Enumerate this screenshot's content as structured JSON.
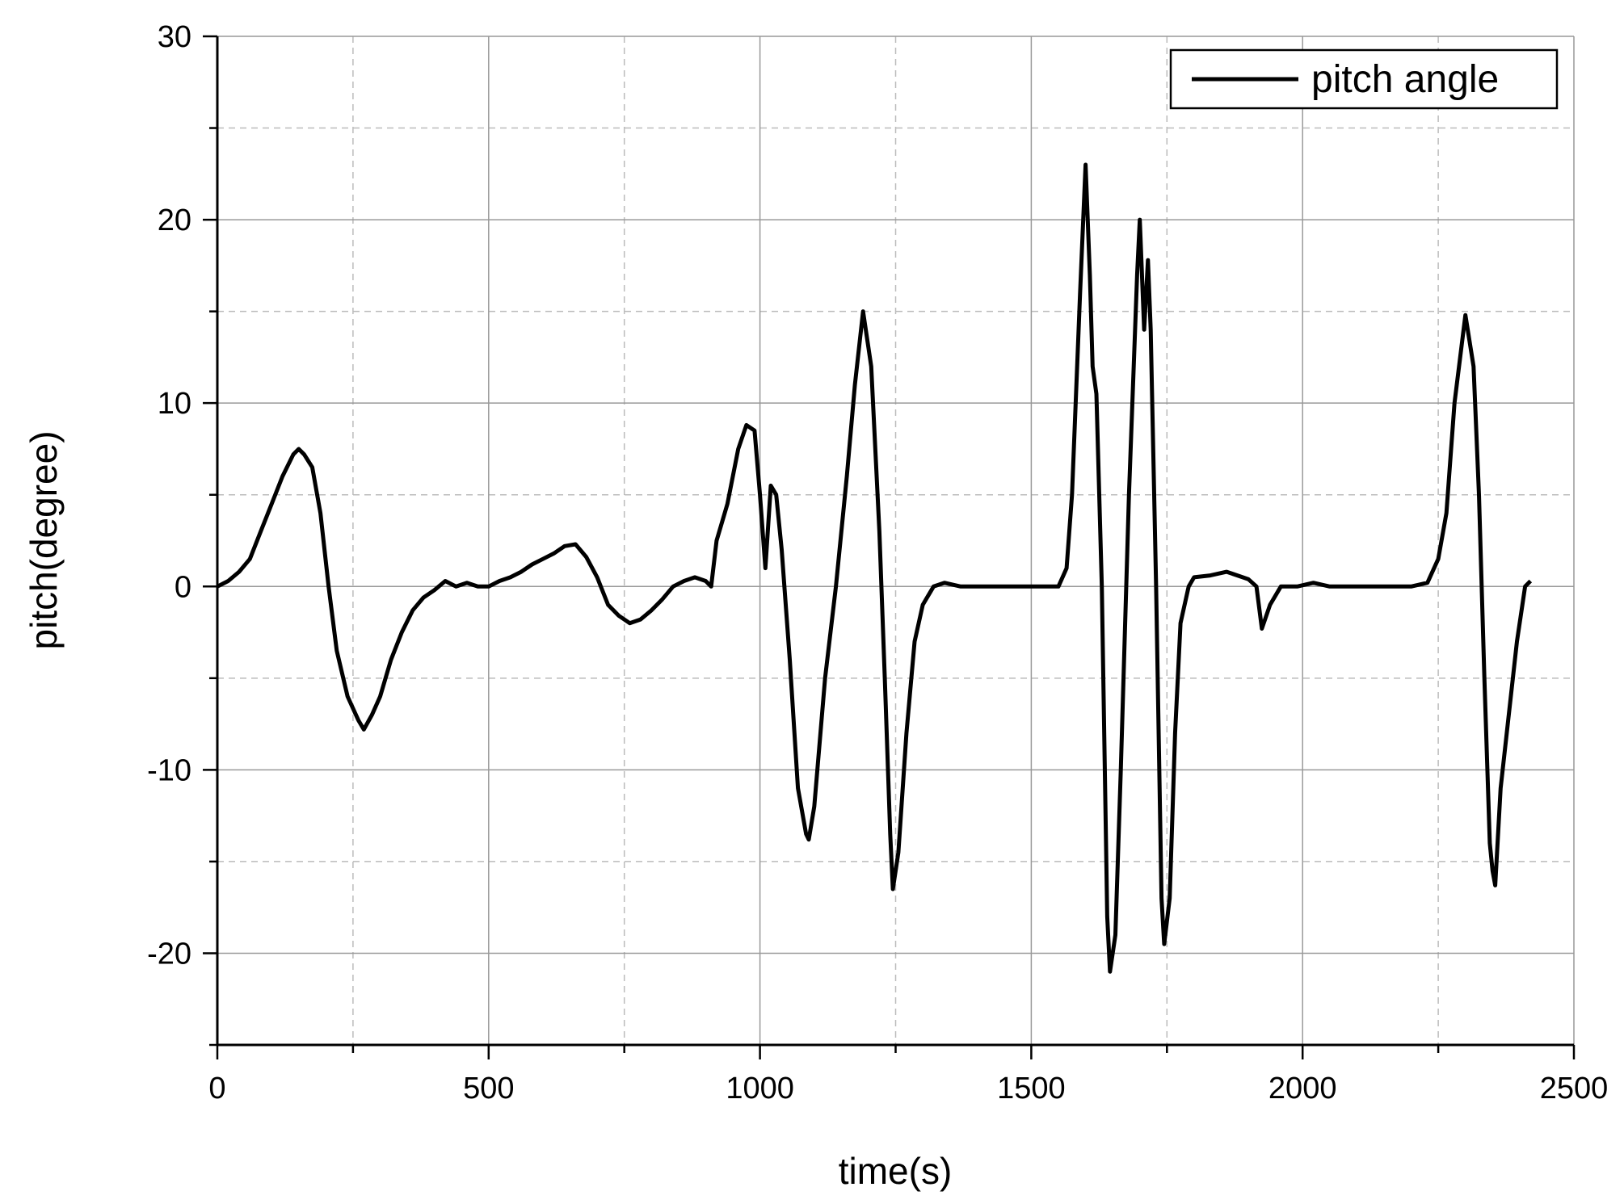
{
  "chart_data": {
    "type": "line",
    "x_label": "time(s)",
    "y_label": "pitch(degree)",
    "xlim": [
      0,
      2500
    ],
    "xticks": [
      0,
      500,
      1000,
      1500,
      2000,
      2500
    ],
    "xminorticks": [
      250,
      750,
      1250,
      1750,
      2250
    ],
    "ylim": [
      -25,
      30
    ],
    "yticks": [
      -20,
      -10,
      0,
      10,
      20,
      30
    ],
    "yminorticks": [
      -25,
      -15,
      -5,
      5,
      15,
      25
    ],
    "grid": true,
    "legend": "upper right",
    "x": [
      0,
      20,
      40,
      60,
      80,
      100,
      120,
      140,
      150,
      160,
      175,
      190,
      205,
      220,
      240,
      260,
      270,
      285,
      300,
      320,
      340,
      360,
      380,
      400,
      420,
      440,
      460,
      480,
      500,
      520,
      540,
      560,
      580,
      600,
      620,
      640,
      660,
      680,
      700,
      720,
      740,
      760,
      780,
      800,
      820,
      840,
      860,
      880,
      900,
      910,
      920,
      940,
      960,
      975,
      990,
      1000,
      1010,
      1020,
      1030,
      1040,
      1055,
      1070,
      1085,
      1090,
      1100,
      1120,
      1140,
      1160,
      1175,
      1190,
      1205,
      1220,
      1230,
      1240,
      1245,
      1255,
      1270,
      1285,
      1300,
      1320,
      1340,
      1370,
      1500,
      1550,
      1565,
      1575,
      1590,
      1600,
      1608,
      1613,
      1620,
      1630,
      1640,
      1645,
      1655,
      1665,
      1680,
      1695,
      1700,
      1708,
      1715,
      1720,
      1730,
      1740,
      1745,
      1755,
      1765,
      1775,
      1790,
      1800,
      1830,
      1860,
      1900,
      1915,
      1925,
      1940,
      1960,
      1990,
      2020,
      2050,
      2200,
      2230,
      2250,
      2265,
      2280,
      2300,
      2315,
      2325,
      2335,
      2345,
      2350,
      2355,
      2365,
      2380,
      2395,
      2410,
      2420
    ],
    "series": [
      {
        "name": "pitch angle",
        "color": "#000000",
        "values": [
          0,
          0.3,
          0.8,
          1.5,
          3,
          4.5,
          6,
          7.2,
          7.5,
          7.2,
          6.5,
          4,
          0,
          -3.5,
          -6,
          -7.3,
          -7.8,
          -7,
          -6,
          -4,
          -2.5,
          -1.3,
          -0.6,
          -0.2,
          0.3,
          0,
          0.2,
          0,
          0,
          0.3,
          0.5,
          0.8,
          1.2,
          1.5,
          1.8,
          2.2,
          2.3,
          1.6,
          0.5,
          -1,
          -1.6,
          -2,
          -1.8,
          -1.3,
          -0.7,
          0,
          0.3,
          0.5,
          0.3,
          0,
          2.5,
          4.5,
          7.5,
          8.8,
          8.5,
          5,
          1,
          5.5,
          5,
          2,
          -4,
          -11,
          -13.5,
          -13.8,
          -12,
          -5,
          0,
          6,
          11,
          15,
          12,
          3,
          -5,
          -13.5,
          -16.5,
          -14.5,
          -8,
          -3,
          -1,
          0,
          0.2,
          0,
          0,
          0,
          1,
          5,
          16,
          23,
          17,
          12,
          10.5,
          0,
          -18,
          -21,
          -19,
          -10,
          5,
          17,
          20,
          14,
          17.8,
          14,
          0,
          -17,
          -19.5,
          -17,
          -8,
          -2,
          0,
          0.5,
          0.6,
          0.8,
          0.4,
          0,
          -2.3,
          -1,
          0,
          0,
          0.2,
          0,
          0,
          0.2,
          1.5,
          4,
          10,
          14.8,
          12,
          5,
          -5,
          -14,
          -15.5,
          -16.3,
          -11,
          -7,
          -3,
          0,
          0.3
        ]
      }
    ]
  }
}
